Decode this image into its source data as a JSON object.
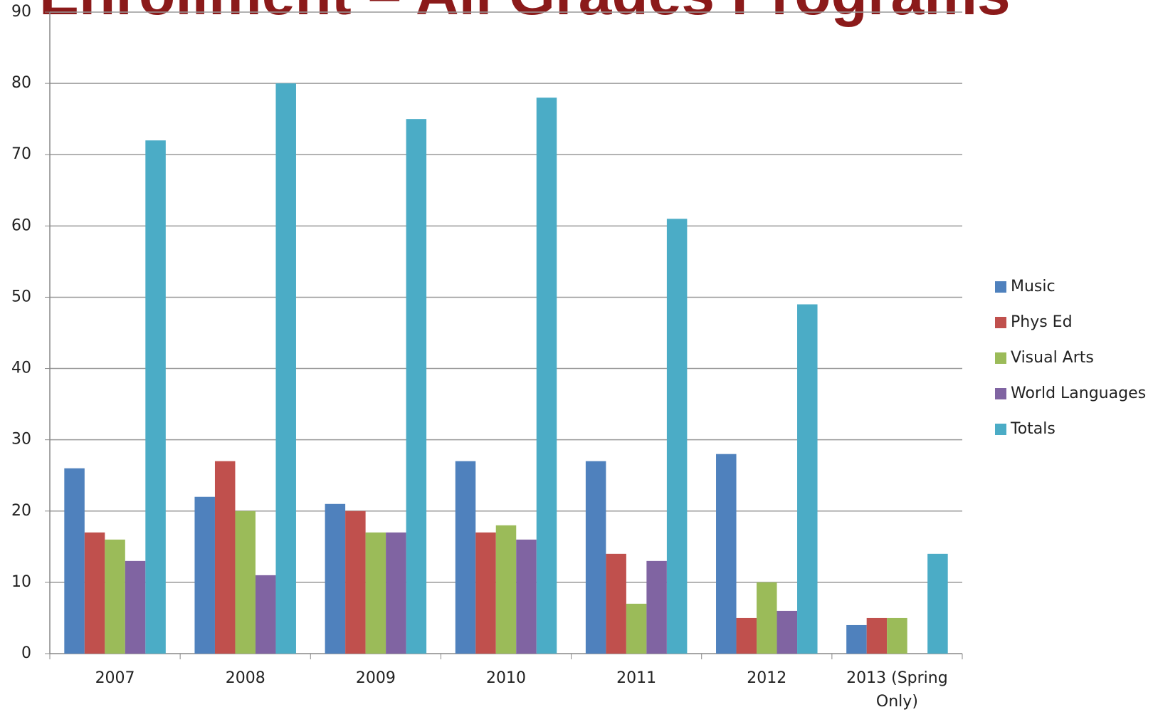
{
  "chart_data": {
    "type": "bar",
    "title": "Enrollment – All Grades Programs",
    "categories": [
      "2007",
      "2008",
      "2009",
      "2010",
      "2011",
      "2012",
      "2013 (Spring Only)"
    ],
    "series": [
      {
        "name": "Music",
        "color": "#4f81bd",
        "values": [
          26,
          22,
          21,
          27,
          27,
          28,
          4
        ]
      },
      {
        "name": "Phys Ed",
        "color": "#c0504d",
        "values": [
          17,
          27,
          20,
          17,
          14,
          5,
          5
        ]
      },
      {
        "name": "Visual Arts",
        "color": "#9bbb59",
        "values": [
          16,
          20,
          17,
          18,
          7,
          10,
          5
        ]
      },
      {
        "name": "World Languages",
        "color": "#8064a2",
        "values": [
          13,
          11,
          17,
          16,
          13,
          6,
          0
        ]
      },
      {
        "name": "Totals",
        "color": "#4bacc6",
        "values": [
          72,
          80,
          75,
          78,
          61,
          49,
          14
        ]
      }
    ],
    "ylim": [
      0,
      90
    ],
    "yticks": [
      0,
      10,
      20,
      30,
      40,
      50,
      60,
      70,
      80,
      90
    ],
    "grid": true,
    "legend": "right"
  }
}
